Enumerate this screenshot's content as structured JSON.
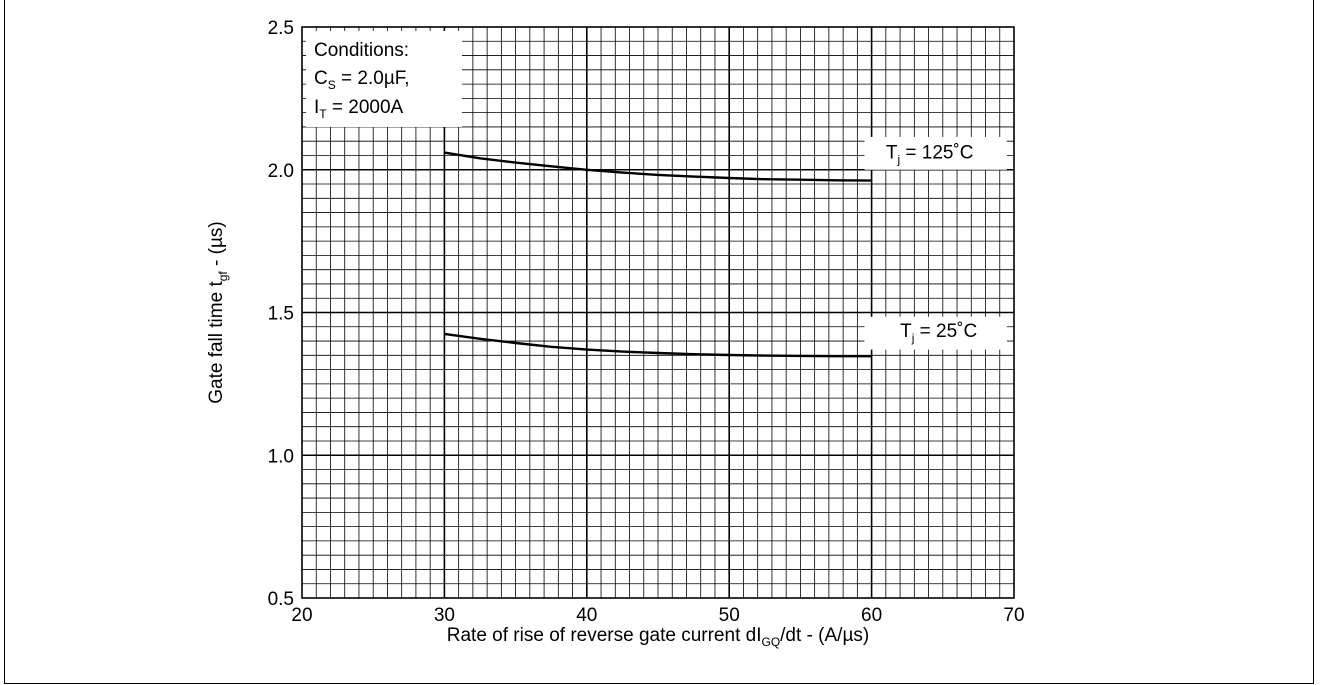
{
  "chart_data": {
    "type": "line",
    "xlabel": {
      "prefix": "Rate of rise of reverse gate current dI",
      "sub": "GQ",
      "suffix": "/dt - (A/µs)"
    },
    "ylabel": {
      "prefix": "Gate fall time t",
      "sub": "gf",
      "suffix": " - (µs)"
    },
    "xlim": [
      20,
      70
    ],
    "ylim": [
      0.5,
      2.5
    ],
    "x_ticks": [
      "20",
      "30",
      "40",
      "50",
      "60",
      "70"
    ],
    "y_ticks": [
      "0.5",
      "1.0",
      "1.5",
      "2.0",
      "2.5"
    ],
    "grid": true,
    "conditions": {
      "title": "Conditions:",
      "line1": {
        "main": "C",
        "sub": "S",
        "rest": " = 2.0µF,"
      },
      "line2": {
        "main": "I",
        "sub": "T",
        "rest": " = 2000A"
      }
    },
    "series": [
      {
        "name": {
          "main": "T",
          "sub": "j",
          "rest": " = 125˚C"
        },
        "x": [
          30,
          32.5,
          35,
          37.5,
          40,
          42.5,
          45,
          47.5,
          50,
          52.5,
          55,
          57.5,
          60
        ],
        "y": [
          2.06,
          2.04,
          2.025,
          2.012,
          2.0,
          1.99,
          1.982,
          1.976,
          1.971,
          1.967,
          1.965,
          1.963,
          1.962
        ]
      },
      {
        "name": {
          "main": "T",
          "sub": "j",
          "rest": " = 25˚C"
        },
        "x": [
          30,
          32.5,
          35,
          37.5,
          40,
          42.5,
          45,
          47.5,
          50,
          52.5,
          55,
          57.5,
          60
        ],
        "y": [
          1.425,
          1.408,
          1.393,
          1.38,
          1.37,
          1.363,
          1.358,
          1.354,
          1.351,
          1.349,
          1.348,
          1.347,
          1.347
        ]
      }
    ]
  }
}
